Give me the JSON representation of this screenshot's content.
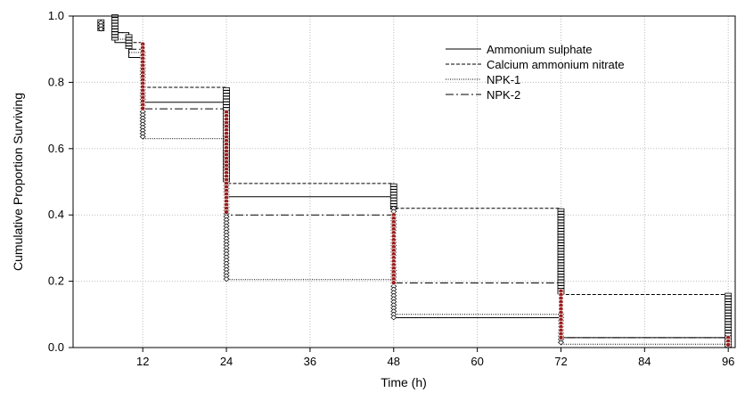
{
  "chart_data": {
    "type": "line",
    "chart_style": "step (Kaplan-Meier survival)",
    "xlabel": "Time (h)",
    "ylabel": "Cumulative Proportion Surviving",
    "x_ticks": [
      12,
      24,
      36,
      48,
      60,
      72,
      84,
      96
    ],
    "y_ticks": [
      0.0,
      0.2,
      0.4,
      0.6,
      0.8,
      1.0
    ],
    "y_tick_labels": [
      "0.0",
      "0.2",
      "0.4",
      "0.6",
      "0.8",
      "1.0"
    ],
    "xlim": [
      2,
      97
    ],
    "ylim": [
      0,
      1
    ],
    "grid": true,
    "legend_position": "top-right",
    "series": [
      {
        "name": "Ammonium sulphate",
        "line_style": "solid",
        "points": [
          [
            6,
            1.0
          ],
          [
            8,
            0.92
          ],
          [
            10,
            0.875
          ],
          [
            12,
            0.74
          ],
          [
            24,
            0.455
          ],
          [
            48,
            0.09
          ],
          [
            72,
            0.03
          ],
          [
            96,
            0.0
          ]
        ]
      },
      {
        "name": "Calcium ammonium nitrate",
        "line_style": "dashed",
        "points": [
          [
            6,
            1.0
          ],
          [
            8,
            0.95
          ],
          [
            10,
            0.92
          ],
          [
            12,
            0.785
          ],
          [
            24,
            0.495
          ],
          [
            48,
            0.42
          ],
          [
            72,
            0.16
          ],
          [
            96,
            0.15
          ]
        ]
      },
      {
        "name": "NPK-1",
        "line_style": "dotted",
        "points": [
          [
            6,
            1.0
          ],
          [
            8,
            0.93
          ],
          [
            10,
            0.89
          ],
          [
            12,
            0.63
          ],
          [
            24,
            0.205
          ],
          [
            48,
            0.1
          ],
          [
            72,
            0.01
          ],
          [
            96,
            0.0
          ]
        ]
      },
      {
        "name": "NPK-2",
        "line_style": "dash-dot",
        "points": [
          [
            6,
            1.0
          ],
          [
            8,
            0.95
          ],
          [
            10,
            0.9
          ],
          [
            12,
            0.72
          ],
          [
            24,
            0.4
          ],
          [
            48,
            0.195
          ],
          [
            72,
            0.03
          ],
          [
            96,
            0.01
          ]
        ]
      }
    ]
  }
}
